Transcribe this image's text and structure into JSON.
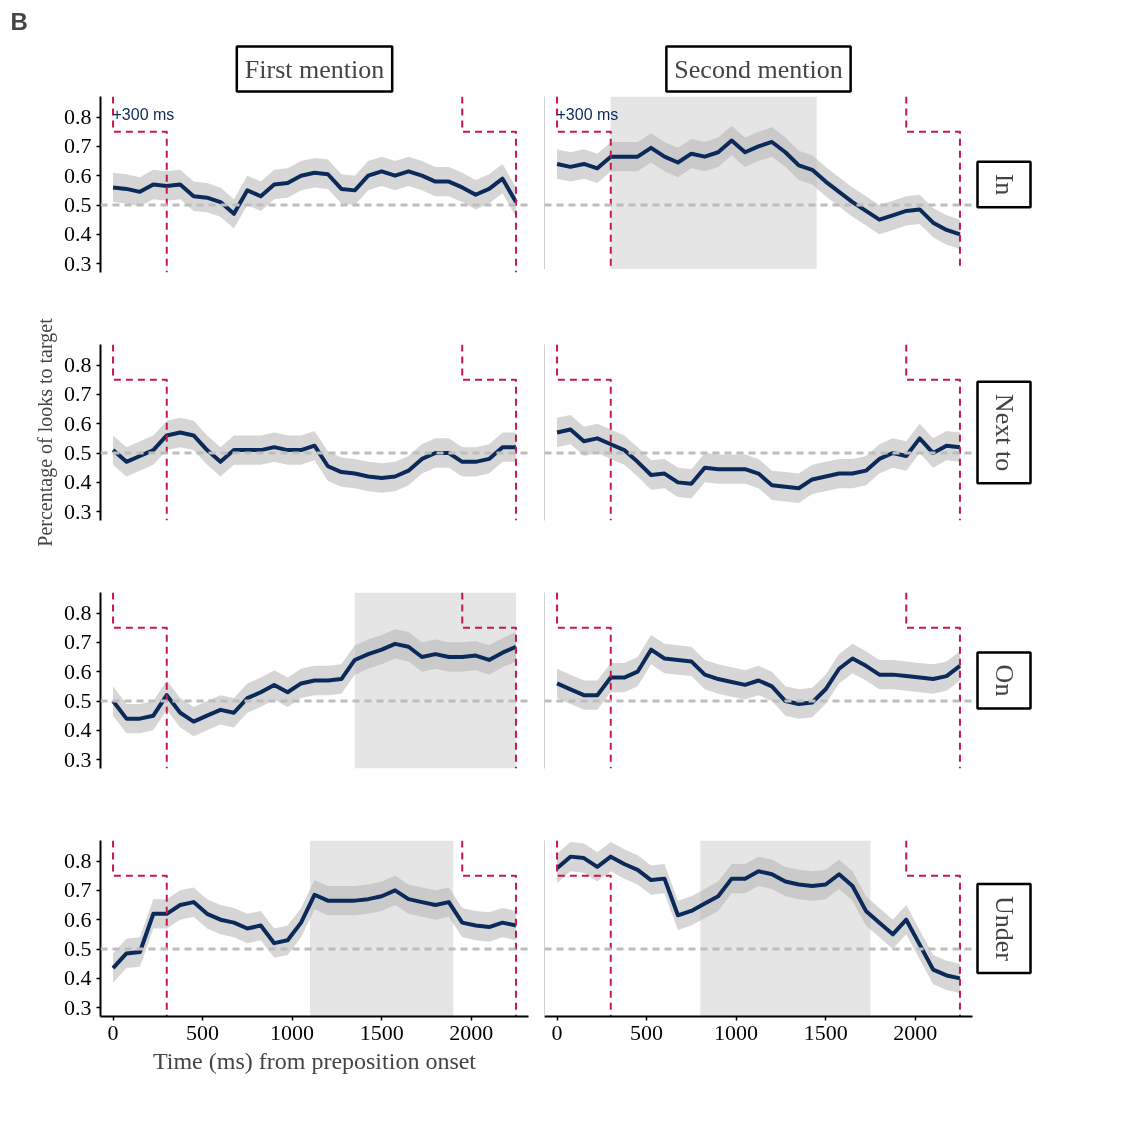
{
  "chart_data": [
    {
      "type": "line",
      "title": "First mention",
      "annotations": [
        "B",
        "+300 ms"
      ],
      "x": [
        0,
        75,
        150,
        225,
        300,
        375,
        450,
        525,
        600,
        675,
        750,
        825,
        900,
        975,
        1050,
        1125,
        1200,
        1275,
        1350,
        1425,
        1500,
        1575,
        1650,
        1725,
        1800,
        1875,
        1950,
        2025,
        2100,
        2175,
        2250
      ],
      "xlim": [
        -70,
        2320
      ],
      "ylim": [
        0.27,
        0.87
      ],
      "xticks": [
        0,
        500,
        1000,
        1500,
        2000
      ],
      "yticks": [
        0.3,
        0.4,
        0.5,
        0.6,
        0.7,
        0.8
      ],
      "tick_labels": "y",
      "series": [
        {
          "color": "#0b2a5a",
          "values": [
            0.56,
            0.555,
            0.545,
            0.57,
            0.565,
            0.57,
            0.53,
            0.525,
            0.51,
            0.47,
            0.55,
            0.53,
            0.57,
            0.575,
            0.6,
            0.61,
            0.605,
            0.555,
            0.55,
            0.6,
            0.615,
            0.6,
            0.615,
            0.6,
            0.58,
            0.58,
            0.56,
            0.535,
            0.555,
            0.59,
            0.51
          ],
          "lower": [
            0.51,
            0.505,
            0.495,
            0.52,
            0.515,
            0.52,
            0.48,
            0.475,
            0.46,
            0.42,
            0.5,
            0.48,
            0.52,
            0.525,
            0.55,
            0.56,
            0.555,
            0.505,
            0.5,
            0.55,
            0.565,
            0.55,
            0.565,
            0.55,
            0.53,
            0.53,
            0.51,
            0.485,
            0.505,
            0.54,
            0.46
          ],
          "upper": [
            0.61,
            0.605,
            0.595,
            0.62,
            0.615,
            0.62,
            0.58,
            0.575,
            0.56,
            0.52,
            0.6,
            0.58,
            0.62,
            0.625,
            0.65,
            0.66,
            0.655,
            0.605,
            0.6,
            0.65,
            0.665,
            0.65,
            0.665,
            0.65,
            0.63,
            0.63,
            0.61,
            0.585,
            0.605,
            0.64,
            0.56
          ]
        },
        {
          "type": "line",
          "line_style": "dashed",
          "color": "#c8174b",
          "x": [
            0,
            0,
            300,
            300
          ],
          "values": [
            0.87,
            0.75,
            0.75,
            0.27
          ]
        },
        {
          "type": "line",
          "line_style": "dashed",
          "color": "#c8174b",
          "x": [
            1950,
            1950,
            2250,
            2250
          ],
          "values": [
            0.87,
            0.75,
            0.75,
            0.27
          ]
        }
      ],
      "ref_lines": [
        {
          "axis": "y",
          "value": 0.5,
          "color": "#bdbdbd",
          "line_style": "dashed"
        }
      ]
    },
    {
      "type": "line",
      "title": "Second mention",
      "y2label": "In",
      "annotations": [
        "+300 ms"
      ],
      "x": [
        0,
        75,
        150,
        225,
        300,
        375,
        450,
        525,
        600,
        675,
        750,
        825,
        900,
        975,
        1050,
        1125,
        1200,
        1275,
        1350,
        1425,
        1500,
        1575,
        1650,
        1725,
        1800,
        1875,
        1950,
        2025,
        2100,
        2175,
        2250
      ],
      "xlim": [
        -70,
        2320
      ],
      "ylim": [
        0.27,
        0.87
      ],
      "xticks": [
        0,
        500,
        1000,
        1500,
        2000
      ],
      "yticks": [
        0.3,
        0.4,
        0.5,
        0.6,
        0.7,
        0.8
      ],
      "tick_labels": false,
      "series": [
        {
          "color": "#0b2a5a",
          "values": [
            0.64,
            0.63,
            0.64,
            0.625,
            0.665,
            0.665,
            0.665,
            0.695,
            0.665,
            0.645,
            0.675,
            0.665,
            0.68,
            0.72,
            0.68,
            0.7,
            0.715,
            0.68,
            0.635,
            0.62,
            0.58,
            0.545,
            0.51,
            0.48,
            0.45,
            0.465,
            0.48,
            0.485,
            0.44,
            0.415,
            0.4
          ],
          "lower": [
            0.59,
            0.58,
            0.59,
            0.575,
            0.615,
            0.615,
            0.615,
            0.645,
            0.615,
            0.595,
            0.625,
            0.615,
            0.63,
            0.67,
            0.63,
            0.65,
            0.665,
            0.63,
            0.585,
            0.57,
            0.53,
            0.495,
            0.46,
            0.43,
            0.4,
            0.415,
            0.43,
            0.435,
            0.39,
            0.365,
            0.35
          ],
          "upper": [
            0.69,
            0.68,
            0.69,
            0.675,
            0.715,
            0.715,
            0.715,
            0.745,
            0.715,
            0.695,
            0.725,
            0.715,
            0.73,
            0.77,
            0.73,
            0.75,
            0.765,
            0.73,
            0.685,
            0.67,
            0.63,
            0.595,
            0.56,
            0.53,
            0.5,
            0.515,
            0.53,
            0.535,
            0.49,
            0.465,
            0.45
          ]
        },
        {
          "type": "line",
          "line_style": "dashed",
          "color": "#c8174b",
          "x": [
            0,
            0,
            300,
            300
          ],
          "values": [
            0.87,
            0.75,
            0.75,
            0.27
          ]
        },
        {
          "type": "line",
          "line_style": "dashed",
          "color": "#c8174b",
          "x": [
            1950,
            1950,
            2250,
            2250
          ],
          "values": [
            0.87,
            0.75,
            0.75,
            0.27
          ]
        }
      ],
      "ref_lines": [
        {
          "axis": "y",
          "value": 0.5,
          "color": "#bdbdbd",
          "line_style": "dashed"
        }
      ],
      "bands": [
        {
          "axis": "x",
          "from": 300,
          "to": 1450,
          "color": "#e5e5e5"
        }
      ]
    },
    {
      "type": "line",
      "ylabel": "Percentage of looks to target",
      "x": [
        0,
        75,
        150,
        225,
        300,
        375,
        450,
        525,
        600,
        675,
        750,
        825,
        900,
        975,
        1050,
        1125,
        1200,
        1275,
        1350,
        1425,
        1500,
        1575,
        1650,
        1725,
        1800,
        1875,
        1950,
        2025,
        2100,
        2175,
        2250
      ],
      "xlim": [
        -70,
        2320
      ],
      "ylim": [
        0.27,
        0.87
      ],
      "xticks": [
        0,
        500,
        1000,
        1500,
        2000
      ],
      "yticks": [
        0.3,
        0.4,
        0.5,
        0.6,
        0.7,
        0.8
      ],
      "tick_labels": "y",
      "series": [
        {
          "color": "#0b2a5a",
          "values": [
            0.51,
            0.47,
            0.49,
            0.51,
            0.56,
            0.57,
            0.56,
            0.51,
            0.47,
            0.51,
            0.51,
            0.51,
            0.52,
            0.51,
            0.51,
            0.525,
            0.455,
            0.435,
            0.43,
            0.42,
            0.415,
            0.42,
            0.44,
            0.48,
            0.5,
            0.5,
            0.47,
            0.47,
            0.48,
            0.52,
            0.52
          ],
          "lower": [
            0.46,
            0.42,
            0.44,
            0.46,
            0.51,
            0.52,
            0.51,
            0.46,
            0.42,
            0.46,
            0.46,
            0.46,
            0.47,
            0.46,
            0.46,
            0.475,
            0.405,
            0.385,
            0.38,
            0.37,
            0.365,
            0.37,
            0.39,
            0.43,
            0.45,
            0.45,
            0.42,
            0.42,
            0.43,
            0.47,
            0.47
          ],
          "upper": [
            0.56,
            0.52,
            0.54,
            0.56,
            0.61,
            0.62,
            0.61,
            0.56,
            0.52,
            0.56,
            0.56,
            0.56,
            0.57,
            0.56,
            0.56,
            0.575,
            0.505,
            0.485,
            0.48,
            0.47,
            0.465,
            0.47,
            0.49,
            0.53,
            0.55,
            0.55,
            0.52,
            0.52,
            0.53,
            0.57,
            0.57
          ]
        },
        {
          "type": "line",
          "line_style": "dashed",
          "color": "#c8174b",
          "x": [
            0,
            0,
            300,
            300
          ],
          "values": [
            0.87,
            0.75,
            0.75,
            0.27
          ]
        },
        {
          "type": "line",
          "line_style": "dashed",
          "color": "#c8174b",
          "x": [
            1950,
            1950,
            2250,
            2250
          ],
          "values": [
            0.87,
            0.75,
            0.75,
            0.27
          ]
        }
      ],
      "ref_lines": [
        {
          "axis": "y",
          "value": 0.5,
          "color": "#bdbdbd",
          "line_style": "dashed"
        }
      ]
    },
    {
      "type": "line",
      "y2label": "Next to",
      "x": [
        0,
        75,
        150,
        225,
        300,
        375,
        450,
        525,
        600,
        675,
        750,
        825,
        900,
        975,
        1050,
        1125,
        1200,
        1275,
        1350,
        1425,
        1500,
        1575,
        1650,
        1725,
        1800,
        1875,
        1950,
        2025,
        2100,
        2175,
        2250
      ],
      "xlim": [
        -70,
        2320
      ],
      "ylim": [
        0.27,
        0.87
      ],
      "xticks": [
        0,
        500,
        1000,
        1500,
        2000
      ],
      "yticks": [
        0.3,
        0.4,
        0.5,
        0.6,
        0.7,
        0.8
      ],
      "tick_labels": false,
      "series": [
        {
          "color": "#0b2a5a",
          "values": [
            0.57,
            0.58,
            0.54,
            0.55,
            0.53,
            0.51,
            0.47,
            0.425,
            0.43,
            0.4,
            0.395,
            0.45,
            0.445,
            0.445,
            0.445,
            0.43,
            0.39,
            0.385,
            0.38,
            0.41,
            0.42,
            0.43,
            0.43,
            0.44,
            0.48,
            0.5,
            0.49,
            0.55,
            0.5,
            0.525,
            0.52
          ],
          "lower": [
            0.52,
            0.53,
            0.49,
            0.5,
            0.48,
            0.46,
            0.42,
            0.375,
            0.38,
            0.35,
            0.345,
            0.4,
            0.395,
            0.395,
            0.395,
            0.38,
            0.34,
            0.335,
            0.33,
            0.36,
            0.37,
            0.38,
            0.38,
            0.39,
            0.43,
            0.45,
            0.44,
            0.5,
            0.45,
            0.475,
            0.47
          ],
          "upper": [
            0.62,
            0.63,
            0.59,
            0.6,
            0.58,
            0.56,
            0.52,
            0.475,
            0.48,
            0.45,
            0.445,
            0.5,
            0.495,
            0.495,
            0.495,
            0.48,
            0.44,
            0.435,
            0.43,
            0.46,
            0.47,
            0.48,
            0.48,
            0.49,
            0.53,
            0.55,
            0.54,
            0.6,
            0.55,
            0.575,
            0.57
          ]
        },
        {
          "type": "line",
          "line_style": "dashed",
          "color": "#c8174b",
          "x": [
            0,
            0,
            300,
            300
          ],
          "values": [
            0.87,
            0.75,
            0.75,
            0.27
          ]
        },
        {
          "type": "line",
          "line_style": "dashed",
          "color": "#c8174b",
          "x": [
            1950,
            1950,
            2250,
            2250
          ],
          "values": [
            0.87,
            0.75,
            0.75,
            0.27
          ]
        }
      ],
      "ref_lines": [
        {
          "axis": "y",
          "value": 0.5,
          "color": "#bdbdbd",
          "line_style": "dashed"
        }
      ]
    },
    {
      "type": "line",
      "x": [
        0,
        75,
        150,
        225,
        300,
        375,
        450,
        525,
        600,
        675,
        750,
        825,
        900,
        975,
        1050,
        1125,
        1200,
        1275,
        1350,
        1425,
        1500,
        1575,
        1650,
        1725,
        1800,
        1875,
        1950,
        2025,
        2100,
        2175,
        2250
      ],
      "xlim": [
        -70,
        2320
      ],
      "ylim": [
        0.27,
        0.87
      ],
      "xticks": [
        0,
        500,
        1000,
        1500,
        2000
      ],
      "yticks": [
        0.3,
        0.4,
        0.5,
        0.6,
        0.7,
        0.8
      ],
      "tick_labels": "y",
      "series": [
        {
          "color": "#0b2a5a",
          "values": [
            0.5,
            0.44,
            0.44,
            0.45,
            0.52,
            0.46,
            0.43,
            0.45,
            0.47,
            0.46,
            0.51,
            0.53,
            0.555,
            0.53,
            0.56,
            0.57,
            0.57,
            0.575,
            0.64,
            0.66,
            0.675,
            0.695,
            0.685,
            0.65,
            0.66,
            0.65,
            0.65,
            0.655,
            0.64,
            0.665,
            0.685
          ],
          "lower": [
            0.45,
            0.39,
            0.39,
            0.4,
            0.47,
            0.41,
            0.38,
            0.4,
            0.42,
            0.41,
            0.46,
            0.48,
            0.505,
            0.48,
            0.51,
            0.52,
            0.52,
            0.525,
            0.59,
            0.61,
            0.625,
            0.645,
            0.635,
            0.6,
            0.61,
            0.6,
            0.6,
            0.605,
            0.59,
            0.615,
            0.635
          ],
          "upper": [
            0.55,
            0.49,
            0.49,
            0.5,
            0.57,
            0.51,
            0.48,
            0.5,
            0.52,
            0.51,
            0.56,
            0.58,
            0.605,
            0.58,
            0.61,
            0.62,
            0.62,
            0.625,
            0.69,
            0.71,
            0.725,
            0.745,
            0.735,
            0.7,
            0.71,
            0.7,
            0.7,
            0.705,
            0.69,
            0.715,
            0.735
          ]
        },
        {
          "type": "line",
          "line_style": "dashed",
          "color": "#c8174b",
          "x": [
            0,
            0,
            300,
            300
          ],
          "values": [
            0.87,
            0.75,
            0.75,
            0.27
          ]
        },
        {
          "type": "line",
          "line_style": "dashed",
          "color": "#c8174b",
          "x": [
            1950,
            1950,
            2250,
            2250
          ],
          "values": [
            0.87,
            0.75,
            0.75,
            0.27
          ]
        }
      ],
      "ref_lines": [
        {
          "axis": "y",
          "value": 0.5,
          "color": "#bdbdbd",
          "line_style": "dashed"
        }
      ],
      "bands": [
        {
          "axis": "x",
          "from": 1350,
          "to": 2250,
          "color": "#e5e5e5"
        }
      ]
    },
    {
      "type": "line",
      "y2label": "On",
      "x": [
        0,
        75,
        150,
        225,
        300,
        375,
        450,
        525,
        600,
        675,
        750,
        825,
        900,
        975,
        1050,
        1125,
        1200,
        1275,
        1350,
        1425,
        1500,
        1575,
        1650,
        1725,
        1800,
        1875,
        1950,
        2025,
        2100,
        2175,
        2250
      ],
      "xlim": [
        -70,
        2320
      ],
      "ylim": [
        0.27,
        0.87
      ],
      "xticks": [
        0,
        500,
        1000,
        1500,
        2000
      ],
      "yticks": [
        0.3,
        0.4,
        0.5,
        0.6,
        0.7,
        0.8
      ],
      "tick_labels": false,
      "series": [
        {
          "color": "#0b2a5a",
          "values": [
            0.56,
            0.54,
            0.52,
            0.52,
            0.58,
            0.58,
            0.6,
            0.675,
            0.645,
            0.64,
            0.635,
            0.59,
            0.575,
            0.565,
            0.555,
            0.57,
            0.55,
            0.5,
            0.49,
            0.495,
            0.54,
            0.61,
            0.645,
            0.62,
            0.59,
            0.59,
            0.585,
            0.58,
            0.575,
            0.585,
            0.62
          ],
          "lower": [
            0.51,
            0.49,
            0.47,
            0.47,
            0.53,
            0.53,
            0.55,
            0.625,
            0.595,
            0.59,
            0.585,
            0.54,
            0.525,
            0.515,
            0.505,
            0.52,
            0.5,
            0.45,
            0.44,
            0.445,
            0.49,
            0.56,
            0.595,
            0.57,
            0.54,
            0.54,
            0.535,
            0.53,
            0.525,
            0.535,
            0.57
          ],
          "upper": [
            0.61,
            0.59,
            0.57,
            0.57,
            0.63,
            0.63,
            0.65,
            0.725,
            0.695,
            0.69,
            0.685,
            0.64,
            0.625,
            0.615,
            0.605,
            0.62,
            0.6,
            0.55,
            0.54,
            0.545,
            0.59,
            0.66,
            0.695,
            0.67,
            0.64,
            0.64,
            0.635,
            0.63,
            0.625,
            0.635,
            0.67
          ]
        },
        {
          "type": "line",
          "line_style": "dashed",
          "color": "#c8174b",
          "x": [
            0,
            0,
            300,
            300
          ],
          "values": [
            0.87,
            0.75,
            0.75,
            0.27
          ]
        },
        {
          "type": "line",
          "line_style": "dashed",
          "color": "#c8174b",
          "x": [
            1950,
            1950,
            2250,
            2250
          ],
          "values": [
            0.87,
            0.75,
            0.75,
            0.27
          ]
        }
      ],
      "ref_lines": [
        {
          "axis": "y",
          "value": 0.5,
          "color": "#bdbdbd",
          "line_style": "dashed"
        }
      ]
    },
    {
      "type": "line",
      "xlabel": "Time (ms) from preposition onset",
      "x": [
        0,
        75,
        150,
        225,
        300,
        375,
        450,
        525,
        600,
        675,
        750,
        825,
        900,
        975,
        1050,
        1125,
        1200,
        1275,
        1350,
        1425,
        1500,
        1575,
        1650,
        1725,
        1800,
        1875,
        1950,
        2025,
        2100,
        2175,
        2250
      ],
      "xlim": [
        -70,
        2320
      ],
      "ylim": [
        0.27,
        0.87
      ],
      "xticks": [
        0,
        500,
        1000,
        1500,
        2000
      ],
      "yticks": [
        0.3,
        0.4,
        0.5,
        0.6,
        0.7,
        0.8
      ],
      "series": [
        {
          "color": "#0b2a5a",
          "values": [
            0.435,
            0.485,
            0.49,
            0.62,
            0.62,
            0.65,
            0.66,
            0.62,
            0.6,
            0.59,
            0.57,
            0.58,
            0.52,
            0.53,
            0.59,
            0.685,
            0.665,
            0.665,
            0.665,
            0.67,
            0.68,
            0.7,
            0.67,
            0.66,
            0.65,
            0.66,
            0.59,
            0.58,
            0.575,
            0.59,
            0.58
          ],
          "lower": [
            0.385,
            0.435,
            0.44,
            0.57,
            0.57,
            0.6,
            0.61,
            0.57,
            0.55,
            0.54,
            0.52,
            0.53,
            0.47,
            0.48,
            0.54,
            0.635,
            0.615,
            0.615,
            0.615,
            0.62,
            0.63,
            0.65,
            0.62,
            0.61,
            0.6,
            0.61,
            0.54,
            0.53,
            0.525,
            0.54,
            0.53
          ],
          "upper": [
            0.485,
            0.535,
            0.54,
            0.67,
            0.67,
            0.7,
            0.71,
            0.67,
            0.65,
            0.64,
            0.62,
            0.63,
            0.57,
            0.58,
            0.64,
            0.735,
            0.715,
            0.715,
            0.715,
            0.72,
            0.73,
            0.75,
            0.72,
            0.71,
            0.7,
            0.71,
            0.64,
            0.63,
            0.625,
            0.64,
            0.63
          ]
        },
        {
          "type": "line",
          "line_style": "dashed",
          "color": "#c8174b",
          "x": [
            0,
            0,
            300,
            300
          ],
          "values": [
            0.87,
            0.75,
            0.75,
            0.27
          ]
        },
        {
          "type": "line",
          "line_style": "dashed",
          "color": "#c8174b",
          "x": [
            1950,
            1950,
            2250,
            2250
          ],
          "values": [
            0.87,
            0.75,
            0.75,
            0.27
          ]
        }
      ],
      "ref_lines": [
        {
          "axis": "y",
          "value": 0.5,
          "color": "#bdbdbd",
          "line_style": "dashed"
        }
      ],
      "bands": [
        {
          "axis": "x",
          "from": 1100,
          "to": 1900,
          "color": "#e5e5e5"
        }
      ]
    },
    {
      "type": "line",
      "y2label": "Under",
      "x": [
        0,
        75,
        150,
        225,
        300,
        375,
        450,
        525,
        600,
        675,
        750,
        825,
        900,
        975,
        1050,
        1125,
        1200,
        1275,
        1350,
        1425,
        1500,
        1575,
        1650,
        1725,
        1800,
        1875,
        1950,
        2025,
        2100,
        2175,
        2250
      ],
      "xlim": [
        -70,
        2320
      ],
      "ylim": [
        0.27,
        0.87
      ],
      "xticks": [
        0,
        500,
        1000,
        1500,
        2000
      ],
      "yticks": [
        0.3,
        0.4,
        0.5,
        0.6,
        0.7,
        0.8
      ],
      "tick_labels": "x",
      "series": [
        {
          "color": "#0b2a5a",
          "values": [
            0.775,
            0.815,
            0.81,
            0.78,
            0.815,
            0.79,
            0.77,
            0.735,
            0.74,
            0.615,
            0.63,
            0.655,
            0.68,
            0.74,
            0.74,
            0.765,
            0.755,
            0.73,
            0.72,
            0.715,
            0.72,
            0.755,
            0.715,
            0.63,
            0.59,
            0.55,
            0.6,
            0.515,
            0.43,
            0.41,
            0.4
          ],
          "lower": [
            0.725,
            0.765,
            0.76,
            0.73,
            0.765,
            0.74,
            0.72,
            0.685,
            0.69,
            0.565,
            0.58,
            0.605,
            0.63,
            0.69,
            0.69,
            0.715,
            0.705,
            0.68,
            0.67,
            0.665,
            0.67,
            0.705,
            0.665,
            0.58,
            0.54,
            0.5,
            0.55,
            0.465,
            0.38,
            0.36,
            0.35
          ],
          "upper": [
            0.825,
            0.865,
            0.86,
            0.83,
            0.865,
            0.84,
            0.82,
            0.785,
            0.79,
            0.665,
            0.68,
            0.705,
            0.73,
            0.79,
            0.79,
            0.815,
            0.805,
            0.78,
            0.77,
            0.765,
            0.77,
            0.805,
            0.765,
            0.68,
            0.64,
            0.6,
            0.65,
            0.565,
            0.48,
            0.46,
            0.45
          ]
        },
        {
          "type": "line",
          "line_style": "dashed",
          "color": "#c8174b",
          "x": [
            0,
            0,
            300,
            300
          ],
          "values": [
            0.87,
            0.75,
            0.75,
            0.27
          ]
        },
        {
          "type": "line",
          "line_style": "dashed",
          "color": "#c8174b",
          "x": [
            1950,
            1950,
            2250,
            2250
          ],
          "values": [
            0.87,
            0.75,
            0.75,
            0.27
          ]
        }
      ],
      "ref_lines": [
        {
          "axis": "y",
          "value": 0.5,
          "color": "#bdbdbd",
          "line_style": "dashed"
        }
      ],
      "bands": [
        {
          "axis": "x",
          "from": 800,
          "to": 1750,
          "color": "#e5e5e5"
        }
      ]
    }
  ]
}
